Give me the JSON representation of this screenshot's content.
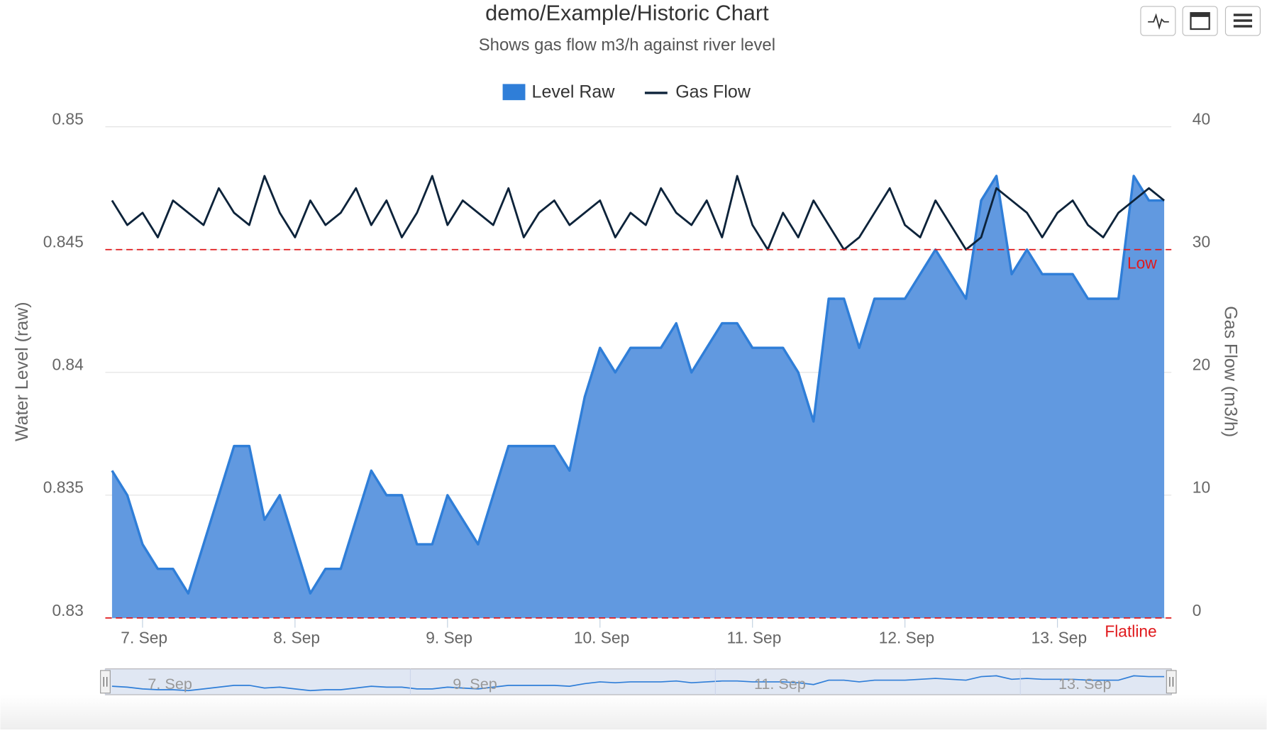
{
  "chart_data": {
    "type": "area-line",
    "title": "demo/Example/Historic Chart",
    "subtitle": "Shows gas flow m3/h against river level",
    "y_label": "Water Level (raw)",
    "y2_label": "Gas Flow (m3/h)",
    "x": [
      6.8,
      6.9,
      7.0,
      7.1,
      7.2,
      7.3,
      7.4,
      7.5,
      7.6,
      7.7,
      7.8,
      7.9,
      8.0,
      8.1,
      8.2,
      8.3,
      8.4,
      8.5,
      8.6,
      8.7,
      8.8,
      8.9,
      9.0,
      9.1,
      9.2,
      9.3,
      9.4,
      9.5,
      9.6,
      9.7,
      9.8,
      9.9,
      10.0,
      10.1,
      10.2,
      10.3,
      10.4,
      10.5,
      10.6,
      10.7,
      10.8,
      10.9,
      11.0,
      11.1,
      11.2,
      11.3,
      11.4,
      11.5,
      11.6,
      11.7,
      11.8,
      11.9,
      12.0,
      12.1,
      12.2,
      12.3,
      12.4,
      12.5,
      12.6,
      12.7,
      12.8,
      12.9,
      13.0,
      13.1,
      13.2,
      13.3,
      13.4,
      13.5,
      13.6,
      13.7
    ],
    "series": [
      {
        "name": "Level Raw",
        "color": "#2f7ed8",
        "fill": "#6199e0",
        "values": [
          0.836,
          0.835,
          0.833,
          0.832,
          0.832,
          0.831,
          0.833,
          0.835,
          0.837,
          0.837,
          0.834,
          0.835,
          0.833,
          0.831,
          0.832,
          0.832,
          0.834,
          0.836,
          0.835,
          0.835,
          0.833,
          0.833,
          0.835,
          0.834,
          0.833,
          0.835,
          0.837,
          0.837,
          0.837,
          0.837,
          0.836,
          0.839,
          0.841,
          0.84,
          0.841,
          0.841,
          0.841,
          0.842,
          0.84,
          0.841,
          0.842,
          0.842,
          0.841,
          0.841,
          0.841,
          0.84,
          0.838,
          0.843,
          0.843,
          0.841,
          0.843,
          0.843,
          0.843,
          0.844,
          0.845,
          0.844,
          0.843,
          0.847,
          0.848,
          0.844,
          0.845,
          0.844,
          0.844,
          0.844,
          0.843,
          0.843,
          0.843,
          0.848,
          0.847,
          0.847
        ]
      },
      {
        "name": "Gas Flow",
        "color": "#0d233a",
        "axis": "y2",
        "values": [
          34,
          32,
          33,
          31,
          34,
          33,
          32,
          35,
          33,
          32,
          36,
          33,
          31,
          34,
          32,
          33,
          35,
          32,
          34,
          31,
          33,
          36,
          32,
          34,
          33,
          32,
          35,
          31,
          33,
          34,
          32,
          33,
          34,
          31,
          33,
          32,
          35,
          33,
          32,
          34,
          31,
          36,
          32,
          30,
          33,
          31,
          34,
          32,
          30,
          31,
          33,
          35,
          32,
          31,
          34,
          32,
          30,
          31,
          35,
          34,
          33,
          31,
          33,
          34,
          32,
          31,
          33,
          34,
          35,
          34
        ]
      }
    ],
    "xlim": [
      6.756,
      13.747
    ],
    "xticks": [
      {
        "value": 7,
        "label": "7. Sep"
      },
      {
        "value": 8,
        "label": "8. Sep"
      },
      {
        "value": 9,
        "label": "9. Sep"
      },
      {
        "value": 10,
        "label": "10. Sep"
      },
      {
        "value": 11,
        "label": "11. Sep"
      },
      {
        "value": 12,
        "label": "12. Sep"
      },
      {
        "value": 13,
        "label": "13. Sep"
      }
    ],
    "ylim": [
      0.83,
      0.85
    ],
    "yticks": [
      0.83,
      0.835,
      0.84,
      0.845,
      0.85
    ],
    "y2lim": [
      0,
      40
    ],
    "y2ticks": [
      0,
      10,
      20,
      30,
      40
    ],
    "plot_lines": [
      {
        "value": 0.845,
        "label": "Low",
        "color": "#e0191c"
      },
      {
        "value": 0.83,
        "label": "Flatline",
        "color": "#e0191c"
      }
    ],
    "grid": true
  }
}
